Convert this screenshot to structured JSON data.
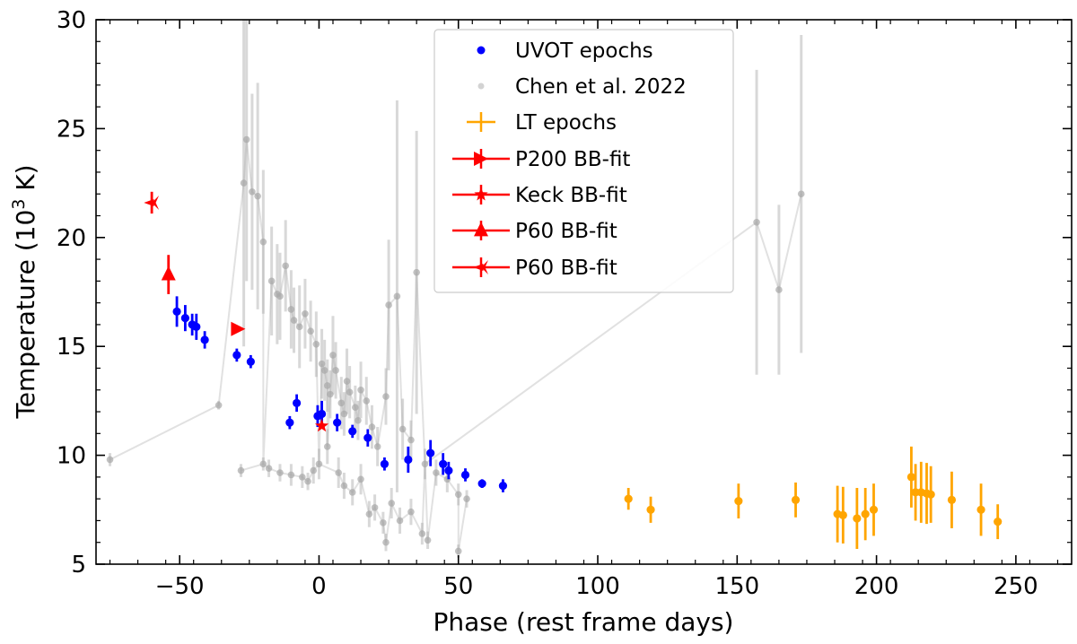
{
  "chart_data": {
    "type": "scatter",
    "xlabel": "Phase (rest frame days)",
    "ylabel_prefix": "Temperature (10",
    "ylabel_sup": "3",
    "ylabel_suffix": " K)",
    "xlim": [
      -80,
      270
    ],
    "ylim": [
      5,
      30
    ],
    "xticks": [
      -50,
      0,
      50,
      100,
      150,
      200,
      250
    ],
    "xtick_labels": [
      "−50",
      "0",
      "50",
      "100",
      "150",
      "200",
      "250"
    ],
    "yticks": [
      5,
      10,
      15,
      20,
      25,
      30
    ],
    "ytick_labels": [
      "5",
      "10",
      "15",
      "20",
      "25",
      "30"
    ],
    "legend_position": "top-center",
    "series": [
      {
        "name": "UVOT epochs",
        "color": "#0000ff",
        "marker": "circle",
        "points": [
          {
            "x": -51,
            "y": 16.6,
            "err": 0.7
          },
          {
            "x": -48,
            "y": 16.3,
            "err": 0.6
          },
          {
            "x": -45.5,
            "y": 16.0,
            "err": 0.5
          },
          {
            "x": -44,
            "y": 15.9,
            "err": 0.6
          },
          {
            "x": -41,
            "y": 15.3,
            "err": 0.4
          },
          {
            "x": -29.5,
            "y": 14.6,
            "err": 0.3
          },
          {
            "x": -24.5,
            "y": 14.3,
            "err": 0.3
          },
          {
            "x": -10.5,
            "y": 11.5,
            "err": 0.3
          },
          {
            "x": -8,
            "y": 12.4,
            "err": 0.4
          },
          {
            "x": -0.5,
            "y": 11.8,
            "err": 0.5
          },
          {
            "x": 1,
            "y": 11.9,
            "err": 0.6
          },
          {
            "x": 6.5,
            "y": 11.5,
            "err": 0.4
          },
          {
            "x": 12,
            "y": 11.1,
            "err": 0.3
          },
          {
            "x": 17.5,
            "y": 10.8,
            "err": 0.4
          },
          {
            "x": 23.5,
            "y": 9.6,
            "err": 0.3
          },
          {
            "x": 32,
            "y": 9.8,
            "err": 0.6
          },
          {
            "x": 40,
            "y": 10.1,
            "err": 0.6
          },
          {
            "x": 44.5,
            "y": 9.6,
            "err": 0.5
          },
          {
            "x": 46.5,
            "y": 9.3,
            "err": 0.4
          },
          {
            "x": 52.5,
            "y": 9.1,
            "err": 0.3
          },
          {
            "x": 58.5,
            "y": 8.7,
            "err": 0.2
          },
          {
            "x": 66,
            "y": 8.6,
            "err": 0.3
          }
        ]
      },
      {
        "name": "Chen et al. 2022",
        "color": "#a8a8a8",
        "marker": "circle",
        "points": [
          {
            "x": -75,
            "y": 9.8,
            "err": 0.3
          },
          {
            "x": -36,
            "y": 12.3,
            "err": 0.2
          },
          {
            "x": -27,
            "y": 22.5,
            "err": 7.5
          },
          {
            "x": -26,
            "y": 24.5,
            "err": 6.5
          },
          {
            "x": -24,
            "y": 22.1,
            "err": 4.5
          },
          {
            "x": -22,
            "y": 21.9,
            "err": 5.2
          },
          {
            "x": -20,
            "y": 19.8,
            "err": 3.3
          },
          {
            "x": -17,
            "y": 18.0,
            "err": 2.5
          },
          {
            "x": -15,
            "y": 17.4,
            "err": 2.3
          },
          {
            "x": -14,
            "y": 17.3,
            "err": 2.0
          },
          {
            "x": -12,
            "y": 18.7,
            "err": 2.1
          },
          {
            "x": -10,
            "y": 16.7,
            "err": 1.8
          },
          {
            "x": -9,
            "y": 16.2,
            "err": 1.5
          },
          {
            "x": -7,
            "y": 15.9,
            "err": 1.9
          },
          {
            "x": -5,
            "y": 16.5,
            "err": 1.6
          },
          {
            "x": -3,
            "y": 15.7,
            "err": 1.4
          },
          {
            "x": -1,
            "y": 15.1,
            "err": 1.5
          },
          {
            "x": 1,
            "y": 14.2,
            "err": 1.6
          },
          {
            "x": 2,
            "y": 13.9,
            "err": 1.4
          },
          {
            "x": 3,
            "y": 13.2,
            "err": 1.2
          },
          {
            "x": 4,
            "y": 12.8,
            "err": 1.1
          },
          {
            "x": 5,
            "y": 14.6,
            "err": 1.8
          },
          {
            "x": 6,
            "y": 13.9,
            "err": 1.3
          },
          {
            "x": 8,
            "y": 12.4,
            "err": 1.2
          },
          {
            "x": 9,
            "y": 11.9,
            "err": 1.0
          },
          {
            "x": 10,
            "y": 13.4,
            "err": 1.5
          },
          {
            "x": 11,
            "y": 12.9,
            "err": 1.2
          },
          {
            "x": 13,
            "y": 12.2,
            "err": 1.0
          },
          {
            "x": 14,
            "y": 11.6,
            "err": 0.9
          },
          {
            "x": 15,
            "y": 13.0,
            "err": 1.3
          },
          {
            "x": 17,
            "y": 12.5,
            "err": 1.1
          },
          {
            "x": 19,
            "y": 11.3,
            "err": 1.0
          },
          {
            "x": 21,
            "y": 10.4,
            "err": 0.9
          },
          {
            "x": 24,
            "y": 12.7,
            "err": 1.3
          },
          {
            "x": 25,
            "y": 16.9,
            "err": 3.0
          },
          {
            "x": 28,
            "y": 17.3,
            "err": 9.0
          },
          {
            "x": 30,
            "y": 11.2,
            "err": 1.4
          },
          {
            "x": 33,
            "y": 10.7,
            "err": 0.9
          },
          {
            "x": 35,
            "y": 18.4,
            "err": 6.5
          },
          {
            "x": 38,
            "y": 9.6,
            "err": 0.7
          },
          {
            "x": 42,
            "y": 9.2,
            "err": 0.6
          },
          {
            "x": 46,
            "y": 8.9,
            "err": 0.6
          },
          {
            "x": 50,
            "y": 8.2,
            "err": 0.5
          },
          {
            "x": 53,
            "y": 8.0,
            "err": 0.4
          },
          {
            "x": -28,
            "y": 9.3,
            "err": 0.3
          },
          {
            "x": -20,
            "y": 9.6,
            "err": 0.3
          },
          {
            "x": -18,
            "y": 9.4,
            "err": 0.4
          },
          {
            "x": -14,
            "y": 9.2,
            "err": 0.4
          },
          {
            "x": -10,
            "y": 9.1,
            "err": 0.5
          },
          {
            "x": -6,
            "y": 9.0,
            "err": 0.5
          },
          {
            "x": -4,
            "y": 8.8,
            "err": 0.4
          },
          {
            "x": -2,
            "y": 9.3,
            "err": 0.6
          },
          {
            "x": 0,
            "y": 9.6,
            "err": 0.7
          },
          {
            "x": 3,
            "y": 10.4,
            "err": 0.8
          },
          {
            "x": 7,
            "y": 9.2,
            "err": 0.7
          },
          {
            "x": 9,
            "y": 8.6,
            "err": 0.6
          },
          {
            "x": 12,
            "y": 8.3,
            "err": 0.6
          },
          {
            "x": 15,
            "y": 8.9,
            "err": 0.7
          },
          {
            "x": 18,
            "y": 7.3,
            "err": 0.6
          },
          {
            "x": 20,
            "y": 7.6,
            "err": 0.6
          },
          {
            "x": 23,
            "y": 6.9,
            "err": 0.5
          },
          {
            "x": 26,
            "y": 7.8,
            "err": 0.7
          },
          {
            "x": 29,
            "y": 7.0,
            "err": 0.6
          },
          {
            "x": 33,
            "y": 7.4,
            "err": 0.6
          },
          {
            "x": 37,
            "y": 6.4,
            "err": 0.5
          },
          {
            "x": 39,
            "y": 6.1,
            "err": 0.4
          },
          {
            "x": 50,
            "y": 5.6,
            "err": 0.3
          },
          {
            "x": 24,
            "y": 6.0,
            "err": 0.4
          },
          {
            "x": 157,
            "y": 20.7,
            "err": 7.0
          },
          {
            "x": 165,
            "y": 17.6,
            "err": 3.9
          },
          {
            "x": 173,
            "y": 22.0,
            "err": 7.3
          }
        ]
      },
      {
        "name": "LT epochs",
        "color": "#ffa500",
        "marker": "circle",
        "points": [
          {
            "x": 111,
            "y": 8.0,
            "err": 0.5
          },
          {
            "x": 119,
            "y": 7.5,
            "err": 0.6
          },
          {
            "x": 150.5,
            "y": 7.9,
            "err": 0.8
          },
          {
            "x": 171,
            "y": 7.95,
            "err": 0.8
          },
          {
            "x": 186,
            "y": 7.3,
            "err": 1.3
          },
          {
            "x": 188,
            "y": 7.25,
            "err": 1.3
          },
          {
            "x": 193,
            "y": 7.1,
            "err": 1.4
          },
          {
            "x": 196,
            "y": 7.3,
            "err": 1.2
          },
          {
            "x": 199,
            "y": 7.5,
            "err": 1.2
          },
          {
            "x": 212.5,
            "y": 9.0,
            "err": 1.4
          },
          {
            "x": 214,
            "y": 8.3,
            "err": 1.3
          },
          {
            "x": 216,
            "y": 8.3,
            "err": 1.4
          },
          {
            "x": 218,
            "y": 8.25,
            "err": 1.4
          },
          {
            "x": 219.5,
            "y": 8.2,
            "err": 1.3
          },
          {
            "x": 227,
            "y": 7.95,
            "err": 1.3
          },
          {
            "x": 237.5,
            "y": 7.5,
            "err": 1.2
          },
          {
            "x": 243.5,
            "y": 6.95,
            "err": 0.8
          }
        ]
      },
      {
        "name": "P200 BB-fit",
        "color": "#ff0000",
        "marker": "triangle-right",
        "points": [
          {
            "x": -29,
            "y": 15.8,
            "err": 0
          }
        ]
      },
      {
        "name": "Keck BB-fit",
        "color": "#ff0000",
        "marker": "star",
        "points": [
          {
            "x": 1,
            "y": 11.35,
            "err": 0
          }
        ]
      },
      {
        "name": "P60 BB-fit",
        "color": "#ff0000",
        "marker": "triangle-up",
        "points": [
          {
            "x": -54,
            "y": 18.3,
            "err": 0.9
          }
        ]
      },
      {
        "name": "P60 BB-fit",
        "color": "#ff0000",
        "marker": "star-tri",
        "points": [
          {
            "x": -60,
            "y": 21.6,
            "err": 0.5
          }
        ]
      }
    ]
  }
}
